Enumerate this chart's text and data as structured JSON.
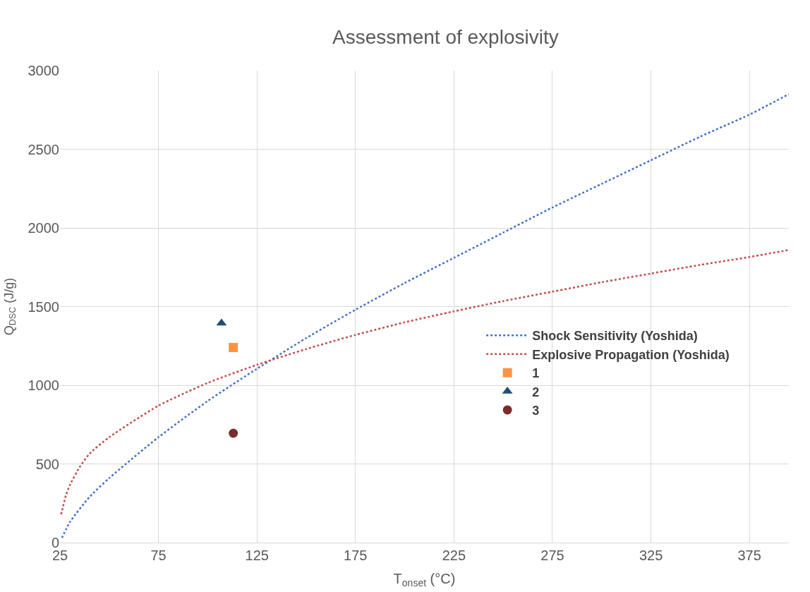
{
  "chart_data": {
    "type": "line",
    "title": "Assessment of explosivity",
    "xlabel": "T$_{onset}$ (°C)",
    "ylabel": "Q$_{DSC}$ (J/g)",
    "xlim": [
      25,
      395
    ],
    "xticks": [
      25,
      75,
      125,
      175,
      225,
      275,
      325,
      375
    ],
    "ylim": [
      0,
      3000
    ],
    "yticks": [
      0,
      500,
      1000,
      1500,
      2000,
      2500,
      3000
    ],
    "grid": true,
    "legend": "right",
    "series": [
      {
        "name": "Shock Sensitivity (Yoshida)",
        "line_style": "dotted",
        "marker": "none",
        "color": "#4472c4",
        "x": [
          26,
          30,
          40,
          50,
          75,
          100,
          125,
          150,
          175,
          200,
          225,
          250,
          275,
          300,
          325,
          350,
          375,
          395
        ],
        "values": [
          30,
          130,
          290,
          410,
          670,
          900,
          1105,
          1300,
          1480,
          1650,
          1810,
          1970,
          2130,
          2280,
          2430,
          2580,
          2720,
          2850
        ]
      },
      {
        "name": "Explosive Propagation (Yoshida)",
        "line_style": "dotted",
        "marker": "none",
        "color": "#c0504d",
        "x": [
          25.5,
          26,
          28,
          30,
          35,
          40,
          50,
          75,
          100,
          125,
          150,
          175,
          200,
          225,
          250,
          275,
          300,
          325,
          350,
          375,
          395
        ],
        "values": [
          180,
          200,
          300,
          365,
          480,
          565,
          670,
          870,
          1015,
          1130,
          1230,
          1320,
          1400,
          1470,
          1535,
          1595,
          1655,
          1710,
          1765,
          1815,
          1860
        ]
      },
      {
        "name": "1",
        "type": "scatter",
        "marker": "square",
        "color": "#f79646",
        "x": [
          113
        ],
        "values": [
          1240
        ]
      },
      {
        "name": "2",
        "type": "scatter",
        "marker": "triangle",
        "color": "#1f4e79",
        "x": [
          107
        ],
        "values": [
          1395
        ]
      },
      {
        "name": "3",
        "type": "scatter",
        "marker": "circle",
        "color": "#7b2c2c",
        "x": [
          113
        ],
        "values": [
          695
        ]
      }
    ]
  }
}
